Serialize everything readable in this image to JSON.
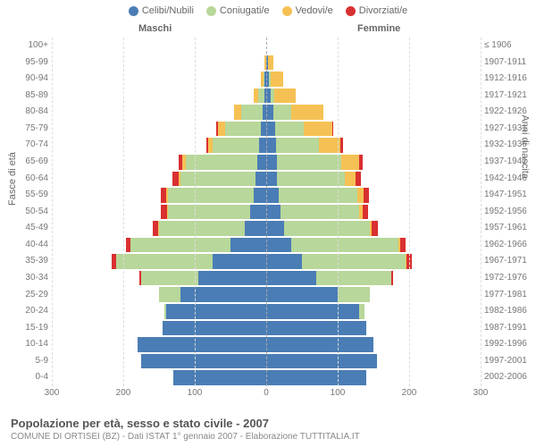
{
  "title": "Popolazione per età, sesso e stato civile - 2007",
  "subtitle": "COMUNE DI ORTISEI (BZ) - Dati ISTAT 1° gennaio 2007 - Elaborazione TUTTITALIA.IT",
  "legend": [
    {
      "label": "Celibi/Nubili",
      "color": "#4a7db5"
    },
    {
      "label": "Coniugati/e",
      "color": "#b8d79a"
    },
    {
      "label": "Vedovi/e",
      "color": "#f6c154"
    },
    {
      "label": "Divorziati/e",
      "color": "#d93030"
    }
  ],
  "side_labels": {
    "left": "Maschi",
    "right": "Femmine"
  },
  "y_left_title": "Fasce di età",
  "y_right_title": "Anni di nascita",
  "x_ticks": [
    300,
    200,
    100,
    0,
    100,
    200,
    300
  ],
  "x_max": 300,
  "colors": {
    "single": "#4a7db5",
    "married": "#b8d79a",
    "widowed": "#f6c154",
    "divorced": "#d93030",
    "grid": "#dddddd",
    "axis": "#aaaaaa",
    "background": "#ffffff"
  },
  "rows": [
    {
      "age": "100+",
      "birth": "≤ 1906",
      "m": {
        "s": 0,
        "c": 0,
        "w": 0,
        "d": 0
      },
      "f": {
        "s": 0,
        "c": 0,
        "w": 0,
        "d": 0
      }
    },
    {
      "age": "95-99",
      "birth": "1907-1911",
      "m": {
        "s": 0,
        "c": 0,
        "w": 2,
        "d": 0
      },
      "f": {
        "s": 2,
        "c": 0,
        "w": 8,
        "d": 0
      }
    },
    {
      "age": "90-94",
      "birth": "1912-1916",
      "m": {
        "s": 2,
        "c": 2,
        "w": 4,
        "d": 0
      },
      "f": {
        "s": 4,
        "c": 2,
        "w": 18,
        "d": 0
      }
    },
    {
      "age": "85-89",
      "birth": "1917-1921",
      "m": {
        "s": 3,
        "c": 8,
        "w": 6,
        "d": 0
      },
      "f": {
        "s": 6,
        "c": 5,
        "w": 30,
        "d": 0
      }
    },
    {
      "age": "80-84",
      "birth": "1922-1926",
      "m": {
        "s": 5,
        "c": 30,
        "w": 10,
        "d": 0
      },
      "f": {
        "s": 10,
        "c": 25,
        "w": 45,
        "d": 0
      }
    },
    {
      "age": "75-79",
      "birth": "1927-1931",
      "m": {
        "s": 8,
        "c": 50,
        "w": 10,
        "d": 2
      },
      "f": {
        "s": 12,
        "c": 40,
        "w": 40,
        "d": 2
      }
    },
    {
      "age": "70-74",
      "birth": "1932-1936",
      "m": {
        "s": 10,
        "c": 65,
        "w": 6,
        "d": 3
      },
      "f": {
        "s": 14,
        "c": 60,
        "w": 30,
        "d": 3
      }
    },
    {
      "age": "65-69",
      "birth": "1937-1941",
      "m": {
        "s": 12,
        "c": 100,
        "w": 5,
        "d": 5
      },
      "f": {
        "s": 15,
        "c": 90,
        "w": 25,
        "d": 5
      }
    },
    {
      "age": "60-64",
      "birth": "1942-1946",
      "m": {
        "s": 15,
        "c": 105,
        "w": 3,
        "d": 8
      },
      "f": {
        "s": 15,
        "c": 95,
        "w": 15,
        "d": 8
      }
    },
    {
      "age": "55-59",
      "birth": "1947-1951",
      "m": {
        "s": 18,
        "c": 120,
        "w": 2,
        "d": 8
      },
      "f": {
        "s": 18,
        "c": 110,
        "w": 8,
        "d": 8
      }
    },
    {
      "age": "50-54",
      "birth": "1952-1956",
      "m": {
        "s": 22,
        "c": 115,
        "w": 2,
        "d": 8
      },
      "f": {
        "s": 20,
        "c": 110,
        "w": 5,
        "d": 8
      }
    },
    {
      "age": "45-49",
      "birth": "1957-1961",
      "m": {
        "s": 30,
        "c": 120,
        "w": 1,
        "d": 8
      },
      "f": {
        "s": 25,
        "c": 120,
        "w": 3,
        "d": 8
      }
    },
    {
      "age": "40-44",
      "birth": "1962-1966",
      "m": {
        "s": 50,
        "c": 140,
        "w": 0,
        "d": 6
      },
      "f": {
        "s": 35,
        "c": 150,
        "w": 2,
        "d": 8
      }
    },
    {
      "age": "35-39",
      "birth": "1967-1971",
      "m": {
        "s": 75,
        "c": 135,
        "w": 0,
        "d": 6
      },
      "f": {
        "s": 50,
        "c": 145,
        "w": 1,
        "d": 8
      }
    },
    {
      "age": "30-34",
      "birth": "1972-1976",
      "m": {
        "s": 95,
        "c": 80,
        "w": 0,
        "d": 3
      },
      "f": {
        "s": 70,
        "c": 105,
        "w": 0,
        "d": 3
      }
    },
    {
      "age": "25-29",
      "birth": "1977-1981",
      "m": {
        "s": 120,
        "c": 30,
        "w": 0,
        "d": 0
      },
      "f": {
        "s": 100,
        "c": 45,
        "w": 0,
        "d": 0
      }
    },
    {
      "age": "20-24",
      "birth": "1982-1986",
      "m": {
        "s": 140,
        "c": 3,
        "w": 0,
        "d": 0
      },
      "f": {
        "s": 130,
        "c": 8,
        "w": 0,
        "d": 0
      }
    },
    {
      "age": "15-19",
      "birth": "1987-1991",
      "m": {
        "s": 145,
        "c": 0,
        "w": 0,
        "d": 0
      },
      "f": {
        "s": 140,
        "c": 0,
        "w": 0,
        "d": 0
      }
    },
    {
      "age": "10-14",
      "birth": "1992-1996",
      "m": {
        "s": 180,
        "c": 0,
        "w": 0,
        "d": 0
      },
      "f": {
        "s": 150,
        "c": 0,
        "w": 0,
        "d": 0
      }
    },
    {
      "age": "5-9",
      "birth": "1997-2001",
      "m": {
        "s": 175,
        "c": 0,
        "w": 0,
        "d": 0
      },
      "f": {
        "s": 155,
        "c": 0,
        "w": 0,
        "d": 0
      }
    },
    {
      "age": "0-4",
      "birth": "2002-2006",
      "m": {
        "s": 130,
        "c": 0,
        "w": 0,
        "d": 0
      },
      "f": {
        "s": 140,
        "c": 0,
        "w": 0,
        "d": 0
      }
    }
  ]
}
